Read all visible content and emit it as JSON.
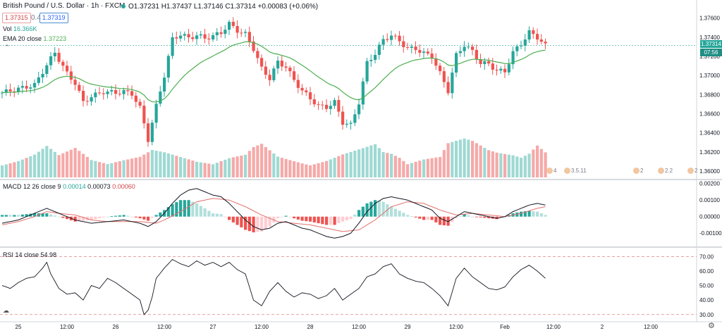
{
  "header": {
    "symbol_title": "British Pound / U.S. Dollar · 1h · FXCM",
    "bid": "1.37315",
    "spread": "0.4",
    "ask": "1.37319",
    "ohlc": "O1.37231 H1.37437 L1.37146 C1.37314 +0.00083 (+0.06%)",
    "vol_label": "Vol",
    "vol_value": "16.366K",
    "ema_label": "EMA 20 close",
    "ema_value": "1.37223",
    "macd_label": "MACD 12 26 close 9",
    "macd_v1": "0.00014",
    "macd_v2": "0.00073",
    "macd_v3": "0.00060",
    "rsi_label": "RSI 14 close",
    "rsi_value": "54.98"
  },
  "price_badge": {
    "price": "1.37314",
    "countdown": "07:56"
  },
  "events": [
    "4",
    "3.5.11",
    "2",
    "2.2",
    "2"
  ],
  "colors": {
    "up": "#26a69a",
    "down": "#ef5350",
    "ema": "#4caf50",
    "macd": "#131722",
    "signal": "#e0706b"
  },
  "chart_data": {
    "type": "candlestick",
    "title": "British Pound / U.S. Dollar · 1h · FXCM",
    "x_ticks": [
      "25",
      "12:00",
      "26",
      "12:00",
      "27",
      "12:00",
      "28",
      "12:00",
      "29",
      "12:00",
      "Feb",
      "12:00",
      "2",
      "12:00"
    ],
    "x_tick_index": [
      4,
      16,
      28,
      40,
      52,
      64,
      76,
      88,
      100,
      112,
      124,
      136,
      148,
      160
    ],
    "price_axis": [
      "1.37600",
      "1.37400",
      "1.37200",
      "1.37000",
      "1.36800",
      "1.36600",
      "1.36400",
      "1.36200",
      "1.36000"
    ],
    "price_range": [
      1.3592,
      1.377
    ],
    "last_price": 1.37314,
    "price_anchors": [
      [
        0,
        1.3682
      ],
      [
        4,
        1.3686
      ],
      [
        8,
        1.369
      ],
      [
        11,
        1.3711
      ],
      [
        13,
        1.3724
      ],
      [
        16,
        1.3702
      ],
      [
        18,
        1.3692
      ],
      [
        20,
        1.3672
      ],
      [
        22,
        1.3678
      ],
      [
        25,
        1.3683
      ],
      [
        28,
        1.3682
      ],
      [
        30,
        1.3683
      ],
      [
        32,
        1.3681
      ],
      [
        34,
        1.3666
      ],
      [
        36,
        1.3633
      ],
      [
        38,
        1.3668
      ],
      [
        40,
        1.37
      ],
      [
        42,
        1.3738
      ],
      [
        44,
        1.3743
      ],
      [
        46,
        1.3739
      ],
      [
        48,
        1.3742
      ],
      [
        50,
        1.3739
      ],
      [
        52,
        1.3741
      ],
      [
        54,
        1.3745
      ],
      [
        56,
        1.3754
      ],
      [
        58,
        1.3747
      ],
      [
        60,
        1.3743
      ],
      [
        62,
        1.3728
      ],
      [
        64,
        1.3707
      ],
      [
        66,
        1.3697
      ],
      [
        68,
        1.3714
      ],
      [
        70,
        1.3709
      ],
      [
        72,
        1.3695
      ],
      [
        74,
        1.3684
      ],
      [
        76,
        1.3676
      ],
      [
        78,
        1.3668
      ],
      [
        80,
        1.3667
      ],
      [
        82,
        1.3672
      ],
      [
        84,
        1.3651
      ],
      [
        86,
        1.3648
      ],
      [
        88,
        1.3672
      ],
      [
        90,
        1.3713
      ],
      [
        92,
        1.3723
      ],
      [
        94,
        1.3737
      ],
      [
        96,
        1.3742
      ],
      [
        98,
        1.3736
      ],
      [
        100,
        1.3728
      ],
      [
        102,
        1.3728
      ],
      [
        104,
        1.3723
      ],
      [
        106,
        1.372
      ],
      [
        108,
        1.3702
      ],
      [
        110,
        1.3684
      ],
      [
        112,
        1.3721
      ],
      [
        114,
        1.3732
      ],
      [
        116,
        1.3725
      ],
      [
        118,
        1.3713
      ],
      [
        120,
        1.3712
      ],
      [
        122,
        1.3705
      ],
      [
        124,
        1.3704
      ],
      [
        126,
        1.3724
      ],
      [
        128,
        1.3733
      ],
      [
        130,
        1.3745
      ],
      [
        132,
        1.374
      ],
      [
        134,
        1.3731
      ]
    ],
    "volume_anchors": [
      [
        0,
        0.35
      ],
      [
        4,
        0.45
      ],
      [
        8,
        0.6
      ],
      [
        11,
        0.8
      ],
      [
        14,
        0.55
      ],
      [
        18,
        0.7
      ],
      [
        22,
        0.4
      ],
      [
        26,
        0.3
      ],
      [
        30,
        0.38
      ],
      [
        34,
        0.45
      ],
      [
        37,
        0.6
      ],
      [
        40,
        0.55
      ],
      [
        44,
        0.45
      ],
      [
        48,
        0.35
      ],
      [
        52,
        0.3
      ],
      [
        56,
        0.45
      ],
      [
        60,
        0.55
      ],
      [
        62,
        0.75
      ],
      [
        64,
        0.85
      ],
      [
        66,
        0.7
      ],
      [
        68,
        0.55
      ],
      [
        72,
        0.45
      ],
      [
        76,
        0.35
      ],
      [
        80,
        0.45
      ],
      [
        84,
        0.6
      ],
      [
        88,
        0.7
      ],
      [
        90,
        0.75
      ],
      [
        92,
        0.8
      ],
      [
        94,
        0.6
      ],
      [
        96,
        0.55
      ],
      [
        98,
        0.45
      ],
      [
        100,
        0.3
      ],
      [
        104,
        0.4
      ],
      [
        108,
        0.45
      ],
      [
        110,
        0.75
      ],
      [
        112,
        0.8
      ],
      [
        114,
        0.85
      ],
      [
        116,
        0.8
      ],
      [
        118,
        0.7
      ],
      [
        120,
        0.6
      ],
      [
        122,
        0.55
      ],
      [
        126,
        0.5
      ],
      [
        128,
        0.45
      ],
      [
        130,
        0.55
      ],
      [
        132,
        0.75
      ],
      [
        134,
        0.6
      ]
    ],
    "macd_axis": [
      "0.00200",
      "0.00100",
      "0.00000",
      "-0.00100"
    ],
    "macd_range": [
      -0.0018,
      0.0022
    ],
    "macd_anchors": [
      [
        0,
        -0.0004
      ],
      [
        4,
        -0.0002
      ],
      [
        8,
        0.0002
      ],
      [
        11,
        0.0005
      ],
      [
        14,
        0.0002
      ],
      [
        18,
        -0.0002
      ],
      [
        22,
        -0.0004
      ],
      [
        26,
        -0.0003
      ],
      [
        30,
        -0.0002
      ],
      [
        34,
        -0.0004
      ],
      [
        36,
        -0.0006
      ],
      [
        38,
        -0.0003
      ],
      [
        40,
        0.0002
      ],
      [
        42,
        0.0008
      ],
      [
        44,
        0.0013
      ],
      [
        46,
        0.0016
      ],
      [
        48,
        0.0017
      ],
      [
        50,
        0.0015
      ],
      [
        52,
        0.0013
      ],
      [
        54,
        0.0012
      ],
      [
        56,
        0.0008
      ],
      [
        58,
        0.0003
      ],
      [
        60,
        -0.0002
      ],
      [
        62,
        -0.0006
      ],
      [
        64,
        -0.0008
      ],
      [
        66,
        -0.0007
      ],
      [
        68,
        -0.0004
      ],
      [
        70,
        -0.0003
      ],
      [
        72,
        -0.0005
      ],
      [
        74,
        -0.0007
      ],
      [
        76,
        -0.0008
      ],
      [
        78,
        -0.001
      ],
      [
        80,
        -0.0012
      ],
      [
        82,
        -0.0013
      ],
      [
        84,
        -0.0012
      ],
      [
        86,
        -0.001
      ],
      [
        88,
        -0.0004
      ],
      [
        90,
        0.0003
      ],
      [
        92,
        0.0008
      ],
      [
        94,
        0.0011
      ],
      [
        96,
        0.0012
      ],
      [
        98,
        0.0011
      ],
      [
        100,
        0.001
      ],
      [
        102,
        0.0008
      ],
      [
        104,
        0.0006
      ],
      [
        106,
        0.0004
      ],
      [
        108,
        -0.0001
      ],
      [
        110,
        -0.0003
      ],
      [
        112,
        0.0
      ],
      [
        114,
        0.0003
      ],
      [
        116,
        0.0002
      ],
      [
        118,
        0.0001
      ],
      [
        120,
        0.0
      ],
      [
        122,
        -0.0001
      ],
      [
        124,
        0.0
      ],
      [
        126,
        0.0003
      ],
      [
        128,
        0.0005
      ],
      [
        130,
        0.0007
      ],
      [
        132,
        0.0008
      ],
      [
        134,
        0.0007
      ]
    ],
    "macd_signal_anchors": [
      [
        0,
        -0.0005
      ],
      [
        4,
        -0.0003
      ],
      [
        8,
        0.0
      ],
      [
        11,
        0.0003
      ],
      [
        14,
        0.0002
      ],
      [
        18,
        0.0001
      ],
      [
        22,
        -0.0002
      ],
      [
        26,
        -0.0003
      ],
      [
        30,
        -0.0003
      ],
      [
        34,
        -0.0003
      ],
      [
        38,
        -0.0004
      ],
      [
        40,
        -0.0002
      ],
      [
        44,
        0.0003
      ],
      [
        48,
        0.0009
      ],
      [
        52,
        0.0011
      ],
      [
        56,
        0.001
      ],
      [
        60,
        0.0006
      ],
      [
        64,
        0.0001
      ],
      [
        68,
        -0.0003
      ],
      [
        72,
        -0.0004
      ],
      [
        76,
        -0.0005
      ],
      [
        80,
        -0.0007
      ],
      [
        84,
        -0.0009
      ],
      [
        88,
        -0.0008
      ],
      [
        92,
        -0.0002
      ],
      [
        96,
        0.0006
      ],
      [
        100,
        0.0009
      ],
      [
        104,
        0.0008
      ],
      [
        108,
        0.0004
      ],
      [
        112,
        0.0001
      ],
      [
        116,
        0.0002
      ],
      [
        120,
        0.0001
      ],
      [
        124,
        0.0
      ],
      [
        128,
        0.0002
      ],
      [
        132,
        0.0005
      ],
      [
        134,
        0.0006
      ]
    ],
    "rsi_axis": [
      "70.00",
      "60.00",
      "50.00",
      "40.00",
      "30.00"
    ],
    "rsi_range": [
      26,
      76
    ],
    "rsi_levels": [
      70,
      30
    ],
    "rsi_anchors": [
      [
        0,
        50
      ],
      [
        2,
        48
      ],
      [
        4,
        52
      ],
      [
        6,
        55
      ],
      [
        8,
        56
      ],
      [
        10,
        62
      ],
      [
        11,
        66
      ],
      [
        12,
        58
      ],
      [
        14,
        48
      ],
      [
        16,
        44
      ],
      [
        18,
        45
      ],
      [
        20,
        40
      ],
      [
        22,
        50
      ],
      [
        24,
        48
      ],
      [
        26,
        55
      ],
      [
        28,
        52
      ],
      [
        30,
        48
      ],
      [
        32,
        44
      ],
      [
        34,
        40
      ],
      [
        35,
        30
      ],
      [
        36,
        33
      ],
      [
        37,
        42
      ],
      [
        38,
        55
      ],
      [
        40,
        62
      ],
      [
        42,
        68
      ],
      [
        44,
        65
      ],
      [
        46,
        63
      ],
      [
        48,
        67
      ],
      [
        50,
        64
      ],
      [
        52,
        66
      ],
      [
        54,
        63
      ],
      [
        56,
        66
      ],
      [
        58,
        61
      ],
      [
        60,
        58
      ],
      [
        62,
        40
      ],
      [
        64,
        36
      ],
      [
        66,
        46
      ],
      [
        68,
        52
      ],
      [
        70,
        46
      ],
      [
        72,
        42
      ],
      [
        74,
        45
      ],
      [
        76,
        44
      ],
      [
        78,
        41
      ],
      [
        80,
        43
      ],
      [
        82,
        48
      ],
      [
        84,
        40
      ],
      [
        86,
        44
      ],
      [
        88,
        48
      ],
      [
        90,
        56
      ],
      [
        92,
        58
      ],
      [
        94,
        63
      ],
      [
        96,
        65
      ],
      [
        98,
        58
      ],
      [
        100,
        55
      ],
      [
        102,
        53
      ],
      [
        104,
        52
      ],
      [
        106,
        48
      ],
      [
        108,
        43
      ],
      [
        110,
        36
      ],
      [
        112,
        55
      ],
      [
        114,
        62
      ],
      [
        116,
        56
      ],
      [
        118,
        52
      ],
      [
        120,
        48
      ],
      [
        122,
        47
      ],
      [
        124,
        49
      ],
      [
        126,
        56
      ],
      [
        128,
        61
      ],
      [
        130,
        64
      ],
      [
        132,
        60
      ],
      [
        134,
        55
      ]
    ]
  }
}
